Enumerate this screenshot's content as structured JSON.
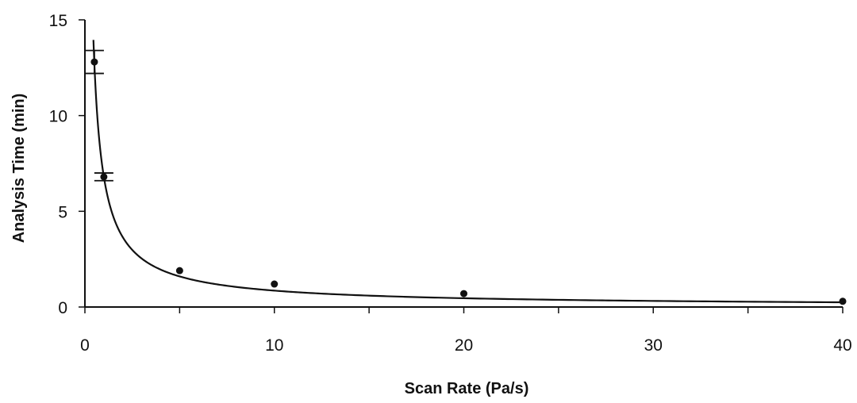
{
  "chart_data": {
    "type": "scatter",
    "xlabel": "Scan Rate (Pa/s)",
    "ylabel": "Analysis Time (min)",
    "xlim": [
      0,
      40
    ],
    "ylim": [
      0,
      15
    ],
    "x_ticks": [
      0,
      10,
      20,
      30,
      40
    ],
    "x_minor_ticks": [
      5,
      15,
      25,
      35
    ],
    "y_ticks": [
      0,
      5,
      10,
      15
    ],
    "grid": false,
    "legend": "none",
    "series": [
      {
        "points": [
          {
            "x": 0.5,
            "y": 12.8,
            "err_low": 12.2,
            "err_high": 13.4
          },
          {
            "x": 1.0,
            "y": 6.8,
            "err_low": 6.6,
            "err_high": 7.0
          },
          {
            "x": 5.0,
            "y": 1.9
          },
          {
            "x": 10.0,
            "y": 1.2
          },
          {
            "x": 20.0,
            "y": 0.7
          },
          {
            "x": 40.0,
            "y": 0.3
          }
        ]
      }
    ],
    "fit_curve": {
      "type": "power",
      "a": 6.8,
      "b": -0.9,
      "x_range": [
        0.45,
        40
      ]
    }
  }
}
